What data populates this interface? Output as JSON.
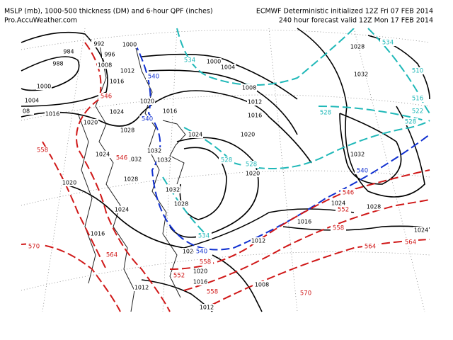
{
  "header": {
    "left": [
      "MSLP (mb), 1000-500 thickness (DM) and 6-hour QPF (inches)",
      "Pro.AccuWeather.com"
    ],
    "right": [
      "ECMWF Deterministic initialized 12Z Fri 07 FEB 2014",
      "240 hour forecast valid 12Z Mon 17 FEB 2014"
    ]
  },
  "isobar_labels": [
    "984",
    "988",
    "1000",
    "1004",
    "08",
    "1016",
    "1020",
    "1024",
    "1028",
    "992",
    "996",
    "1000",
    "1008",
    "1012",
    "1016",
    "1020",
    "1016",
    "1024",
    "1020",
    "1024",
    "1032",
    "1032",
    "1032",
    "1028",
    "1020",
    "1024",
    "1016",
    "1024",
    "1028",
    "1032",
    "1020",
    "1016",
    "1012",
    "1008",
    "1012",
    "1016",
    "1020",
    "1024",
    "1028",
    "1024",
    "1032",
    "1032",
    "1028",
    "1000",
    "1004",
    "1008",
    "1012",
    "1016",
    "1012"
  ],
  "thickness_labels": [
    "534",
    "534",
    "528",
    "528",
    "522",
    "516",
    "510",
    "528",
    "528",
    "534",
    "540",
    "540",
    "540",
    "540",
    "546",
    "546",
    "552",
    "558",
    "564",
    "564",
    "570",
    "564",
    "558",
    "552",
    "558",
    "570",
    "558",
    "546"
  ]
}
